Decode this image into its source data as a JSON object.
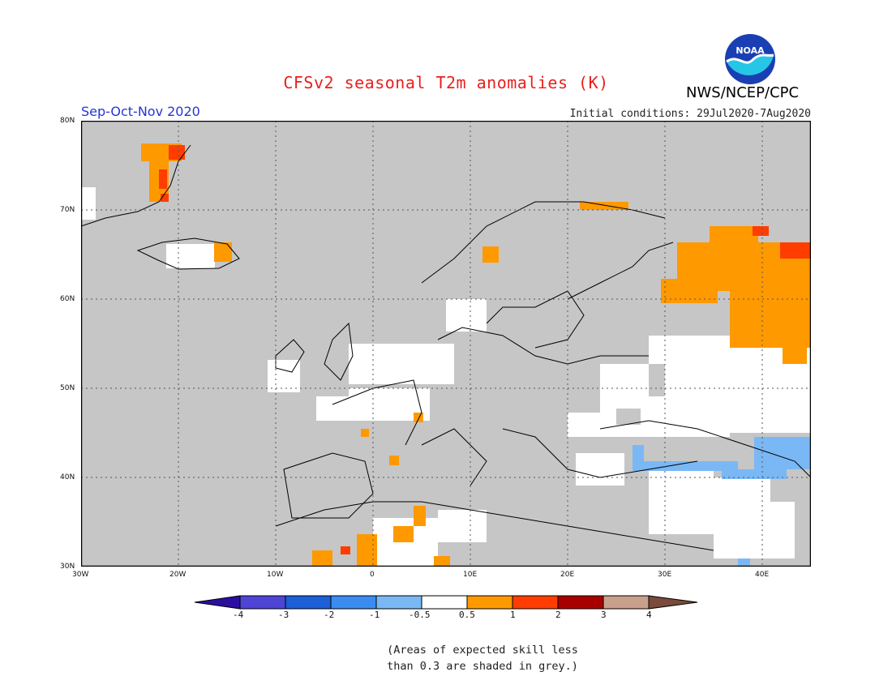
{
  "title": "CFSv2 seasonal T2m anomalies (K)",
  "organization": "NWS/NCEP/CPC",
  "logo_text": "NOAA",
  "season": "Sep-Oct-Nov 2020",
  "initial_conditions": "Initial conditions: 29Jul2020-7Aug2020",
  "map": {
    "lon_range": [
      -30,
      45
    ],
    "lat_range": [
      30,
      80
    ],
    "lat_ticks": [
      "30N",
      "40N",
      "50N",
      "60N",
      "70N",
      "80N"
    ],
    "lon_ticks": [
      "30W",
      "20W",
      "10W",
      "0",
      "10E",
      "20E",
      "30E",
      "40E"
    ],
    "grid": true
  },
  "colorbar": {
    "colors": [
      "#2c0fa0",
      "#4e44d6",
      "#1c5fd6",
      "#3a8cf0",
      "#7ab8f5",
      "#ffffff",
      "#ff9900",
      "#ff3d00",
      "#a80000",
      "#c9a08c",
      "#7a4b3a"
    ],
    "labels": [
      "-4",
      "-3",
      "-2",
      "-1",
      "-0.5",
      "0.5",
      "1",
      "2",
      "3",
      "4"
    ]
  },
  "note": [
    "(Areas of expected skill less",
    "than 0.3 are shaded in grey.)"
  ],
  "colors": {
    "grey": "#c6c6c6",
    "warm": "#ff9900",
    "hot": "#ff3d00",
    "cool": "#7ab8f5"
  }
}
